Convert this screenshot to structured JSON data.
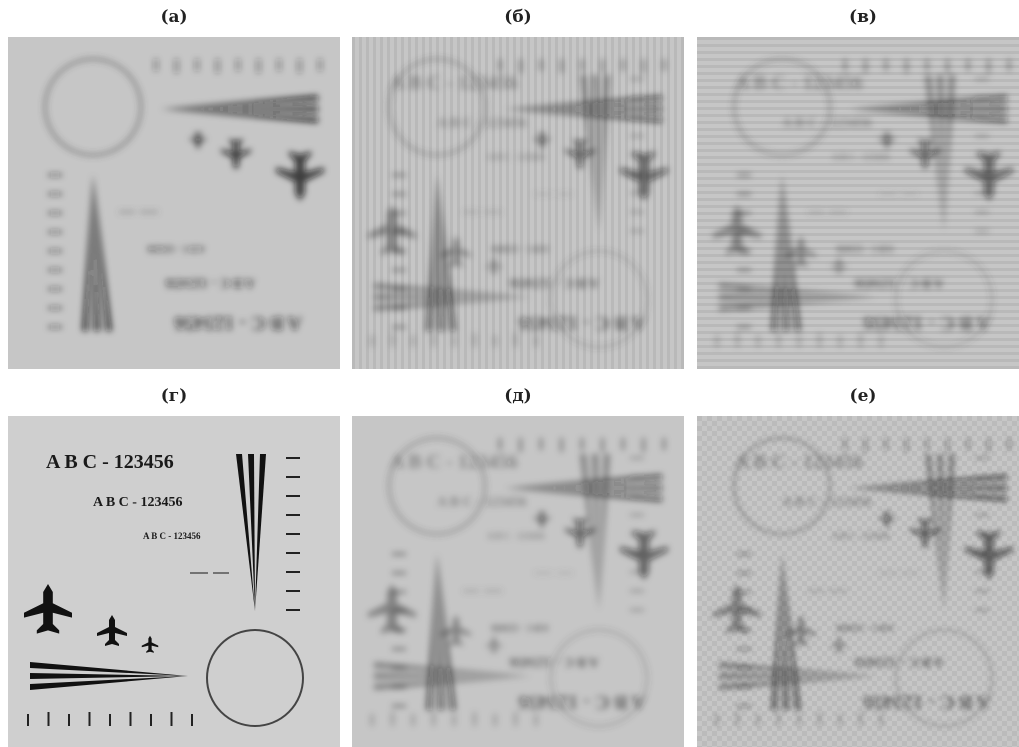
{
  "panels": [
    {
      "label": "(а)"
    },
    {
      "label": "(б)"
    },
    {
      "label": "(в)"
    },
    {
      "label": "(г)"
    },
    {
      "label": "(д)"
    },
    {
      "label": "(е)"
    }
  ],
  "test_pattern": {
    "texts": [
      "A B C - 123456",
      "A B C - 123456",
      "A B C - 123456"
    ]
  }
}
